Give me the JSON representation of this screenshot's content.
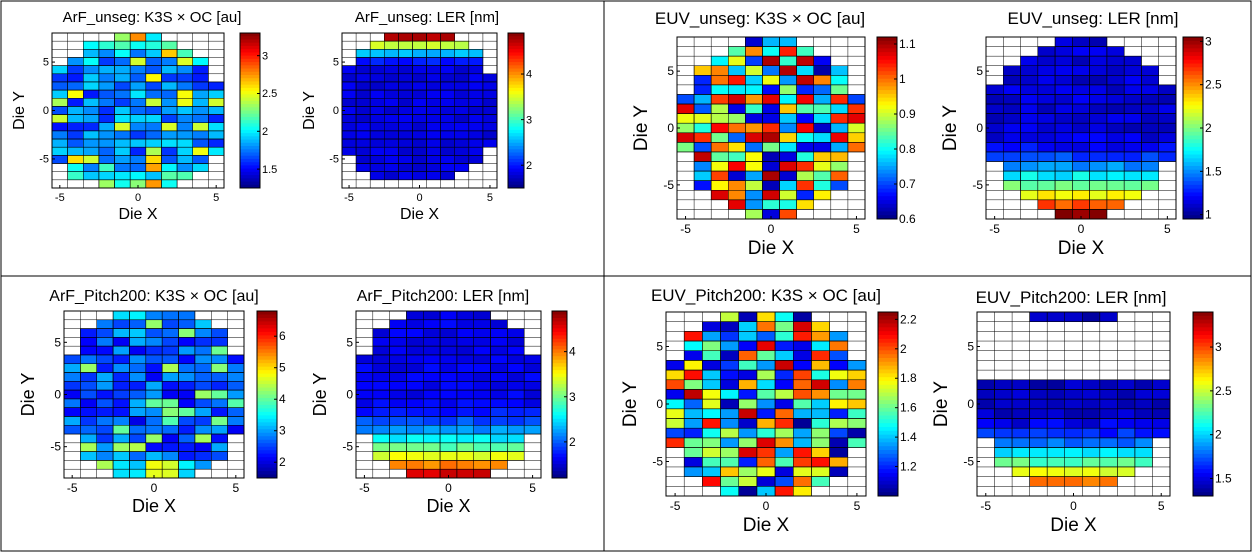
{
  "figure": {
    "colors": {
      "frame": "#000000",
      "grid": "#000000",
      "empty": "#ffffff"
    },
    "colormap": "jet"
  },
  "chart_data": [
    {
      "type": "heatmap",
      "title": "ArF_unseg: K3S × OC [au]",
      "xlabel": "Die X",
      "ylabel": "Die Y",
      "xlim": [
        -5.5,
        5.5
      ],
      "ylim": [
        -8,
        8
      ],
      "xticks": [
        "-5",
        "0",
        "5"
      ],
      "yticks": [
        "5",
        "0",
        "-5"
      ],
      "color_range": [
        1.25,
        3.3
      ],
      "colorbar_ticks": [
        "3",
        "2.5",
        "2",
        "1.5"
      ],
      "pattern": "uniform",
      "seed": 11,
      "widths": [
        3,
        6,
        7,
        9,
        10,
        10,
        11,
        11,
        11,
        11,
        11,
        11,
        11,
        11,
        11,
        10,
        9,
        8,
        5
      ],
      "base": 1.7,
      "amp": 0.4,
      "rand": 0.55
    },
    {
      "type": "heatmap",
      "title": "ArF_unseg: LER [nm]",
      "xlabel": "Die X",
      "ylabel": "Die Y",
      "xlim": [
        -5.5,
        5.5
      ],
      "ylim": [
        -8,
        8
      ],
      "xticks": [
        "-5",
        "0",
        "5"
      ],
      "yticks": [
        "5",
        "0",
        "-5"
      ],
      "color_range": [
        1.5,
        4.9
      ],
      "colorbar_ticks": [
        "4",
        "3",
        "2"
      ],
      "pattern": "top",
      "seed": 23,
      "widths": [
        5,
        7,
        9,
        9,
        10,
        11,
        11,
        11,
        11,
        11,
        11,
        11,
        11,
        11,
        10,
        9,
        8,
        6,
        0
      ],
      "base": 1.75,
      "amp": 2.9,
      "rand": 0.15
    },
    {
      "type": "heatmap",
      "title": "EUV_unseg: K3S × OC [au]",
      "xlabel": "Die X",
      "ylabel": "Die Y",
      "xlim": [
        -5.5,
        5.5
      ],
      "ylim": [
        -8,
        8
      ],
      "xticks": [
        "-5",
        "0",
        "5"
      ],
      "yticks": [
        "5",
        "0",
        "-5"
      ],
      "color_range": [
        0.6,
        1.12
      ],
      "colorbar_ticks": [
        "1.1",
        "1",
        "0.9",
        "0.8",
        "0.7",
        "0.6"
      ],
      "pattern": "random",
      "seed": 37,
      "widths": [
        3,
        5,
        7,
        9,
        9,
        9,
        11,
        11,
        11,
        11,
        11,
        11,
        9,
        9,
        9,
        9,
        7,
        5,
        3
      ],
      "base": 0.86,
      "amp": 0.0,
      "rand": 0.48
    },
    {
      "type": "heatmap",
      "title": "EUV_unseg: LER [nm]",
      "xlabel": "Die X",
      "ylabel": "Die Y",
      "xlim": [
        -5.5,
        5.5
      ],
      "ylim": [
        -8,
        8
      ],
      "xticks": [
        "-5",
        "0",
        "5"
      ],
      "yticks": [
        "5",
        "0",
        "-5"
      ],
      "color_range": [
        0.95,
        3.05
      ],
      "colorbar_ticks": [
        "3",
        "2.5",
        "2",
        "1.5",
        "1"
      ],
      "pattern": "bottom",
      "seed": 41,
      "widths": [
        3,
        5,
        7,
        9,
        9,
        11,
        11,
        11,
        11,
        11,
        11,
        11,
        11,
        9,
        9,
        9,
        7,
        5,
        3
      ],
      "base": 1.05,
      "amp": 1.9,
      "rand": 0.15
    },
    {
      "type": "heatmap",
      "title": "ArF_Pitch200: K3S × OC [au]",
      "xlabel": "Die X",
      "ylabel": "Die Y",
      "xlim": [
        -5.5,
        5.5
      ],
      "ylim": [
        -8,
        8
      ],
      "xticks": [
        "-5",
        "0",
        "5"
      ],
      "yticks": [
        "5",
        "0",
        "-5"
      ],
      "color_range": [
        1.5,
        6.8
      ],
      "colorbar_ticks": [
        "6",
        "5",
        "4",
        "3",
        "2"
      ],
      "pattern": "uniform",
      "seed": 53,
      "widths": [
        5,
        7,
        9,
        9,
        9,
        11,
        11,
        11,
        11,
        11,
        11,
        11,
        11,
        11,
        9,
        9,
        9,
        7,
        5
      ],
      "base": 2.4,
      "amp": 0.5,
      "rand": 1.3
    },
    {
      "type": "heatmap",
      "title": "ArF_Pitch200: LER [nm]",
      "xlabel": "Die X",
      "ylabel": "Die Y",
      "xlim": [
        -5.5,
        5.5
      ],
      "ylim": [
        -8,
        8
      ],
      "xticks": [
        "-5",
        "0",
        "5"
      ],
      "yticks": [
        "5",
        "0",
        "-5"
      ],
      "color_range": [
        1.2,
        4.9
      ],
      "colorbar_ticks": [
        "4",
        "3",
        "2"
      ],
      "pattern": "bottom",
      "seed": 67,
      "widths": [
        5,
        7,
        9,
        9,
        9,
        11,
        11,
        11,
        11,
        11,
        11,
        11,
        11,
        11,
        9,
        9,
        9,
        7,
        5
      ],
      "base": 1.5,
      "amp": 3.0,
      "rand": 0.2
    },
    {
      "type": "heatmap",
      "title": "EUV_Pitch200: K3S × OC [au]",
      "xlabel": "Die X",
      "ylabel": "Die Y",
      "xlim": [
        -5.5,
        5.5
      ],
      "ylim": [
        -8,
        8
      ],
      "xticks": [
        "-5",
        "0",
        "5"
      ],
      "yticks": [
        "5",
        "0",
        "-5"
      ],
      "color_range": [
        1.0,
        2.25
      ],
      "colorbar_ticks": [
        "2.2",
        "2",
        "1.8",
        "1.6",
        "1.4",
        "1.2"
      ],
      "pattern": "random",
      "seed": 79,
      "widths": [
        5,
        7,
        9,
        9,
        9,
        11,
        11,
        11,
        11,
        11,
        11,
        11,
        11,
        11,
        9,
        9,
        9,
        7,
        5
      ],
      "base": 1.6,
      "amp": 0.0,
      "rand": 1.15
    },
    {
      "type": "heatmap",
      "title": "EUV_Pitch200: LER [nm]",
      "xlabel": "Die X",
      "ylabel": "Die Y",
      "xlim": [
        -5.5,
        5.5
      ],
      "ylim": [
        -8,
        8
      ],
      "xticks": [
        "-5",
        "0",
        "5"
      ],
      "yticks": [
        "5",
        "0",
        "-5"
      ],
      "color_range": [
        1.3,
        3.4
      ],
      "colorbar_ticks": [
        "3",
        "2.5",
        "2",
        "1.5"
      ],
      "pattern": "euvp200ler",
      "seed": 83,
      "widths": [
        5,
        0,
        0,
        0,
        0,
        0,
        0,
        11,
        11,
        11,
        11,
        11,
        11,
        9,
        9,
        9,
        7,
        5,
        0
      ],
      "base": 1.35,
      "amp": 1.9,
      "rand": 0.15
    }
  ]
}
